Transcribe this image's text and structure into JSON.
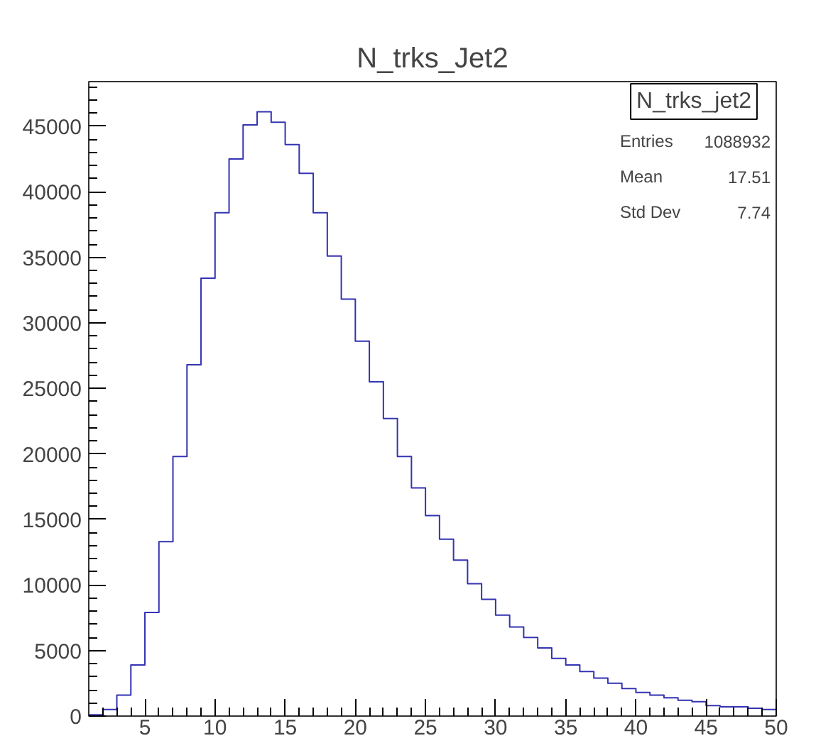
{
  "chart_data": {
    "type": "histogram",
    "title": "N_trks_Jet2",
    "bins": [
      1,
      2,
      3,
      4,
      5,
      6,
      7,
      8,
      9,
      10,
      11,
      12,
      13,
      14,
      15,
      16,
      17,
      18,
      19,
      20,
      21,
      22,
      23,
      24,
      25,
      26,
      27,
      28,
      29,
      30,
      31,
      32,
      33,
      34,
      35,
      36,
      37,
      38,
      39,
      40,
      41,
      42,
      43,
      44,
      45,
      46,
      47,
      48,
      49,
      50
    ],
    "values": [
      100,
      500,
      1600,
      3900,
      7900,
      13300,
      19800,
      26800,
      33400,
      38400,
      42500,
      45100,
      46100,
      45300,
      43600,
      41400,
      38400,
      35100,
      31800,
      28600,
      25500,
      22700,
      19800,
      17400,
      15300,
      13500,
      11900,
      10100,
      8900,
      7700,
      6800,
      6000,
      5200,
      4400,
      3900,
      3400,
      2900,
      2500,
      2100,
      1800,
      1600,
      1400,
      1200,
      1100,
      800,
      700,
      700,
      600,
      500
    ],
    "color": "#3333b3",
    "xlim": [
      1,
      50
    ],
    "xticks": [
      5,
      10,
      15,
      20,
      25,
      30,
      35,
      40,
      45,
      50
    ],
    "ylim": [
      0,
      48400
    ],
    "yticks": [
      0,
      5000,
      10000,
      15000,
      20000,
      25000,
      30000,
      35000,
      40000,
      45000
    ],
    "grid": false,
    "annotations": [
      "N_trks_jet2",
      "Entries",
      "1088932",
      "Mean",
      "17.51",
      "Std Dev",
      "7.74"
    ]
  }
}
